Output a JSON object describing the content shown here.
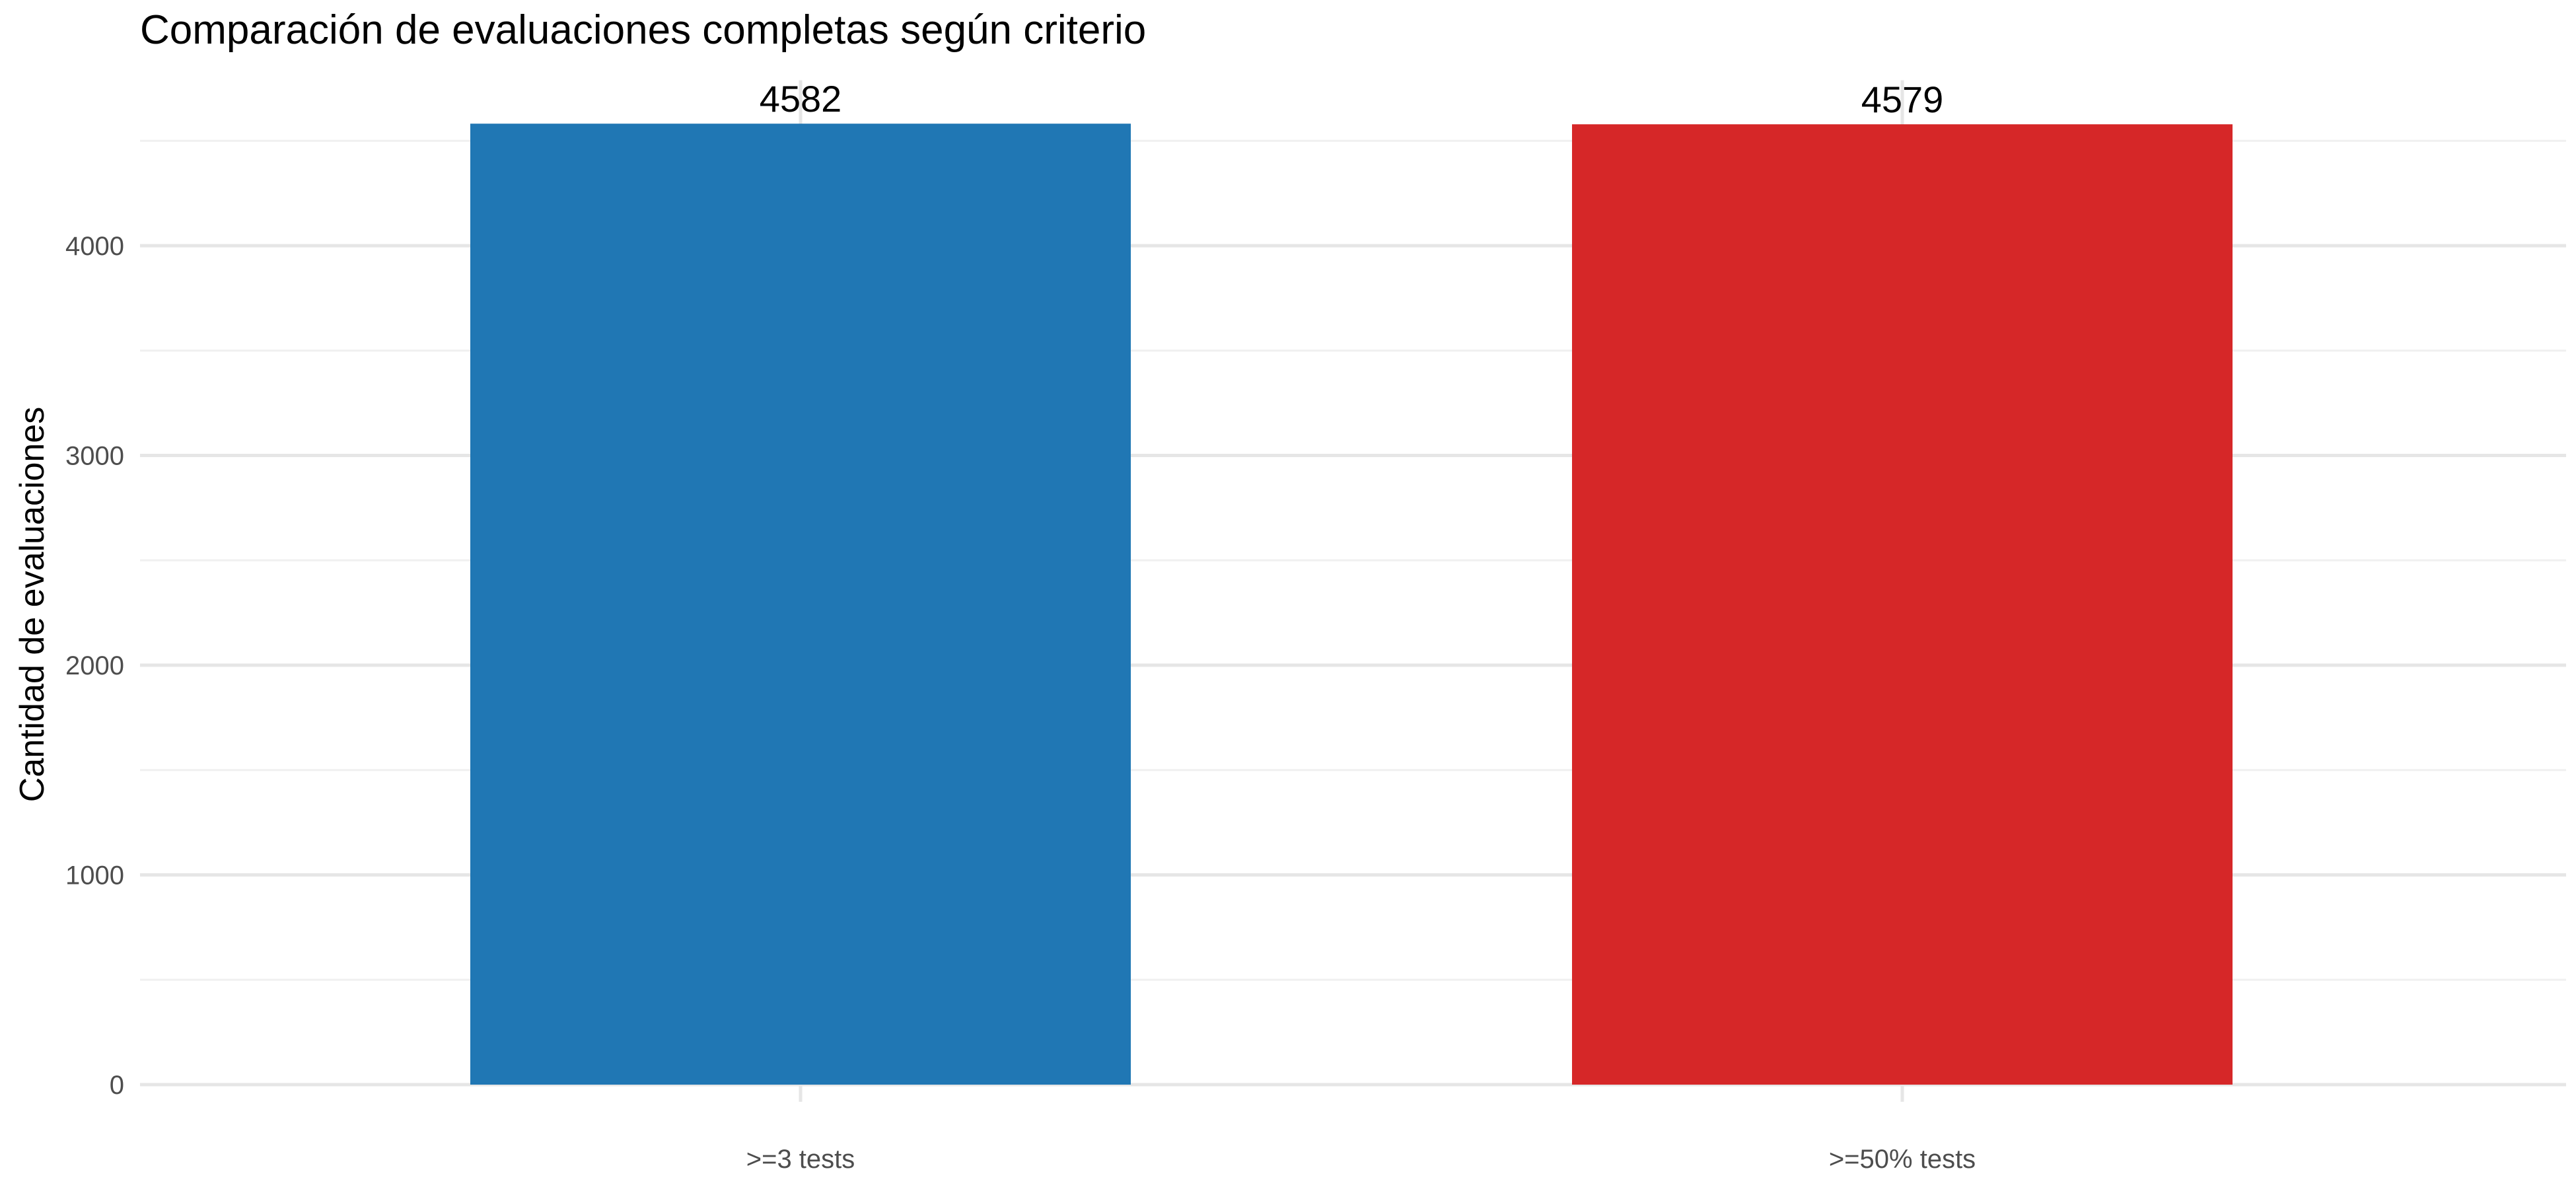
{
  "chart_data": {
    "type": "bar",
    "title": "Comparación de evaluaciones completas según criterio",
    "xlabel": "",
    "ylabel": "Cantidad de evaluaciones",
    "categories": [
      ">=3 tests",
      ">=50% tests"
    ],
    "values": [
      4582,
      4579
    ],
    "value_labels": [
      "4582",
      "4579"
    ],
    "bar_colors": [
      "#2077b4",
      "#d62728"
    ],
    "ylim": [
      0,
      4600
    ],
    "yticks": [
      0,
      1000,
      2000,
      3000,
      4000
    ],
    "ytick_labels": [
      "0",
      "1000",
      "2000",
      "3000",
      "4000"
    ],
    "grid": true,
    "legend": "none"
  }
}
